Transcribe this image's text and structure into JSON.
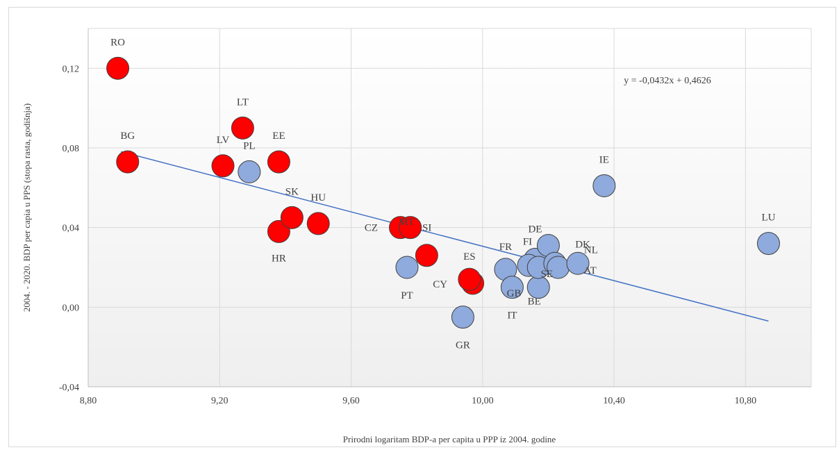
{
  "chart_data": {
    "type": "scatter",
    "title": "",
    "xlabel": "Prirodni logaritam BDP-a per capita u PPP iz 2004. godine",
    "ylabel": "2004. - 2020. BDP per capia u PPS (stopa rasta, godišnja)",
    "xlim": [
      8.8,
      11.0
    ],
    "ylim": [
      -0.04,
      0.14
    ],
    "x_ticks": [
      "8,80",
      "9,20",
      "9,60",
      "10,00",
      "10,40",
      "10,80"
    ],
    "x_tick_values": [
      8.8,
      9.2,
      9.6,
      10.0,
      10.4,
      10.8
    ],
    "y_ticks": [
      "-0,04",
      "0,00",
      "0,04",
      "0,08",
      "0,12"
    ],
    "y_tick_values": [
      -0.04,
      0.0,
      0.04,
      0.08,
      0.12
    ],
    "grid": true,
    "colors": {
      "group_red": "#ff0000",
      "group_blue": "#8faadc",
      "trendline": "#4472c4"
    },
    "trendline": {
      "equation": "y = -0,0432x + 0,4626",
      "slope": -0.0432,
      "intercept": 0.4626,
      "x_range": [
        8.9,
        10.87
      ]
    },
    "series": [
      {
        "color": "#ff0000",
        "points": [
          {
            "label": "RO",
            "x": 8.89,
            "y": 0.12
          },
          {
            "label": "BG",
            "x": 8.92,
            "y": 0.073
          },
          {
            "label": "LV",
            "x": 9.21,
            "y": 0.071
          },
          {
            "label": "LT",
            "x": 9.27,
            "y": 0.09
          },
          {
            "label": "EE",
            "x": 9.38,
            "y": 0.073
          },
          {
            "label": "HR",
            "x": 9.38,
            "y": 0.038
          },
          {
            "label": "SK",
            "x": 9.42,
            "y": 0.045
          },
          {
            "label": "HU",
            "x": 9.5,
            "y": 0.042
          },
          {
            "label": "CZ",
            "x": 9.75,
            "y": 0.04
          },
          {
            "label": "SI",
            "x": 9.78,
            "y": 0.04
          },
          {
            "label": "MT",
            "x": 9.83,
            "y": 0.026
          },
          {
            "label": "CY",
            "x": 9.97,
            "y": 0.012
          },
          {
            "label": "ES",
            "x": 9.96,
            "y": 0.014
          }
        ]
      },
      {
        "color": "#8faadc",
        "points": [
          {
            "label": "PL",
            "x": 9.29,
            "y": 0.068
          },
          {
            "label": "PT",
            "x": 9.77,
            "y": 0.02
          },
          {
            "label": "GR",
            "x": 9.94,
            "y": -0.005
          },
          {
            "label": "FR",
            "x": 10.07,
            "y": 0.019
          },
          {
            "label": "IT",
            "x": 10.09,
            "y": 0.01
          },
          {
            "label": "FI",
            "x": 10.16,
            "y": 0.024
          },
          {
            "label": "DE",
            "x": 10.2,
            "y": 0.031
          },
          {
            "label": "BE",
            "x": 10.17,
            "y": 0.01
          },
          {
            "label": "GB",
            "x": 10.14,
            "y": 0.021
          },
          {
            "label": "SE",
            "x": 10.17,
            "y": 0.02
          },
          {
            "label": "NL",
            "x": 10.22,
            "y": 0.022
          },
          {
            "label": "AT",
            "x": 10.23,
            "y": 0.02
          },
          {
            "label": "DK",
            "x": 10.29,
            "y": 0.022
          },
          {
            "label": "IE",
            "x": 10.37,
            "y": 0.061
          },
          {
            "label": "LU",
            "x": 10.87,
            "y": 0.032
          }
        ]
      }
    ],
    "label_offsets": {
      "RO": [
        0,
        -38
      ],
      "BG": [
        0,
        -38
      ],
      "LV": [
        0,
        -38
      ],
      "LT": [
        0,
        -38
      ],
      "EE": [
        0,
        -38
      ],
      "HR": [
        0,
        38
      ],
      "SK": [
        0,
        -38
      ],
      "HU": [
        0,
        -38
      ],
      "CZ": [
        -42,
        0
      ],
      "SI": [
        24,
        0
      ],
      "MT": [
        -29,
        -49
      ],
      "CY": [
        -47,
        1
      ],
      "ES": [
        0,
        -33
      ],
      "PL": [
        0,
        -38
      ],
      "PT": [
        0,
        40
      ],
      "GR": [
        0,
        40
      ],
      "FR": [
        0,
        -33
      ],
      "IT": [
        0,
        40
      ],
      "FI": [
        -11,
        -26
      ],
      "DE": [
        -19,
        -24
      ],
      "BE": [
        -6,
        20
      ],
      "GB": [
        -21,
        40
      ],
      "SE": [
        12,
        9
      ],
      "NL": [
        52,
        -20
      ],
      "AT": [
        46,
        4
      ],
      "DK": [
        7,
        -28
      ],
      "IE": [
        0,
        -38
      ],
      "LU": [
        0,
        -38
      ]
    }
  }
}
